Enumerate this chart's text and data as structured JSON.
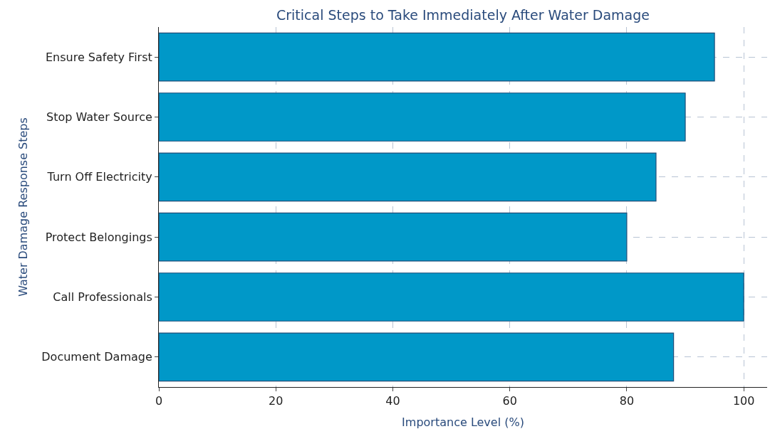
{
  "chart_data": {
    "type": "bar",
    "orientation": "horizontal",
    "title": "Critical Steps to Take Immediately After Water Damage",
    "xlabel": "Importance Level (%)",
    "ylabel": "Water Damage Response Steps",
    "categories": [
      "Ensure Safety First",
      "Stop Water Source",
      "Turn Off Electricity",
      "Protect Belongings",
      "Call Professionals",
      "Document Damage"
    ],
    "values": [
      95,
      90,
      85,
      80,
      100,
      88
    ],
    "color": "#0098c8",
    "xlim": [
      0,
      104
    ],
    "xticks": [
      0,
      20,
      40,
      60,
      80,
      100
    ],
    "grid": true
  }
}
